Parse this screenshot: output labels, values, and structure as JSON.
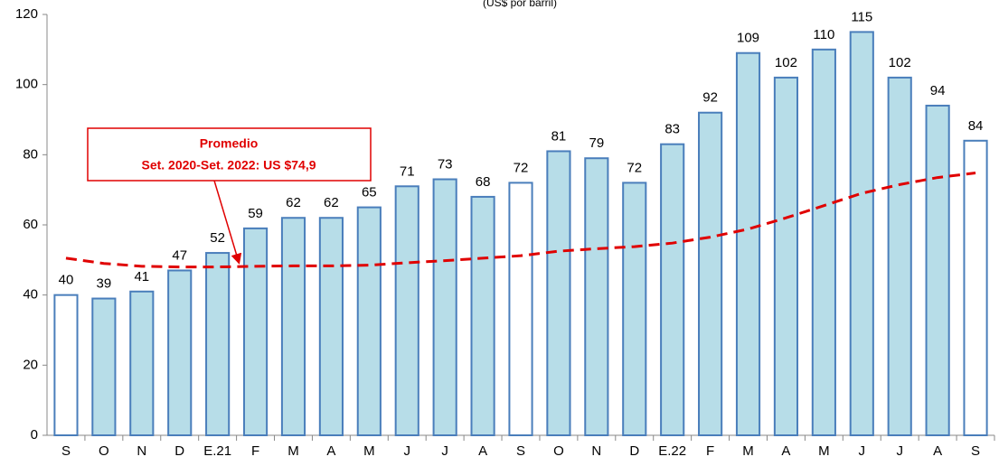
{
  "chart_data": {
    "type": "bar",
    "subtitle": "(US$ por barril)",
    "categories": [
      "S",
      "O",
      "N",
      "D",
      "E.21",
      "F",
      "M",
      "A",
      "M",
      "J",
      "J",
      "A",
      "S",
      "O",
      "N",
      "D",
      "E.22",
      "F",
      "M",
      "A",
      "M",
      "J",
      "J",
      "A",
      "S"
    ],
    "values": [
      40,
      39,
      41,
      47,
      52,
      59,
      62,
      62,
      65,
      71,
      73,
      68,
      72,
      81,
      79,
      72,
      83,
      92,
      109,
      102,
      110,
      115,
      102,
      94,
      84
    ],
    "color": "#b7dde8",
    "edge_color": "#4a7ebb",
    "bar_colors": [
      "#ffffff",
      "#b7dde8",
      "#b7dde8",
      "#b7dde8",
      "#b7dde8",
      "#b7dde8",
      "#b7dde8",
      "#b7dde8",
      "#b7dde8",
      "#b7dde8",
      "#b7dde8",
      "#b7dde8",
      "#ffffff",
      "#b7dde8",
      "#b7dde8",
      "#b7dde8",
      "#b7dde8",
      "#b7dde8",
      "#b7dde8",
      "#b7dde8",
      "#b7dde8",
      "#b7dde8",
      "#b7dde8",
      "#b7dde8",
      "#ffffff"
    ],
    "trend": {
      "color": "#e00000",
      "values": [
        50.5,
        49,
        48.2,
        48,
        48,
        48.2,
        48.3,
        48.3,
        48.5,
        49.2,
        49.8,
        50.5,
        51.2,
        52.5,
        53.2,
        53.8,
        54.8,
        56.5,
        58.8,
        62,
        65.5,
        69,
        71.5,
        73.5,
        74.8
      ]
    },
    "annotation": [
      "Promedio",
      "Set. 2020-Set. 2022: US $74,9"
    ],
    "ylim": [
      0,
      120
    ],
    "yticks": [
      0,
      20,
      40,
      60,
      80,
      100,
      120
    ],
    "grid": false
  }
}
